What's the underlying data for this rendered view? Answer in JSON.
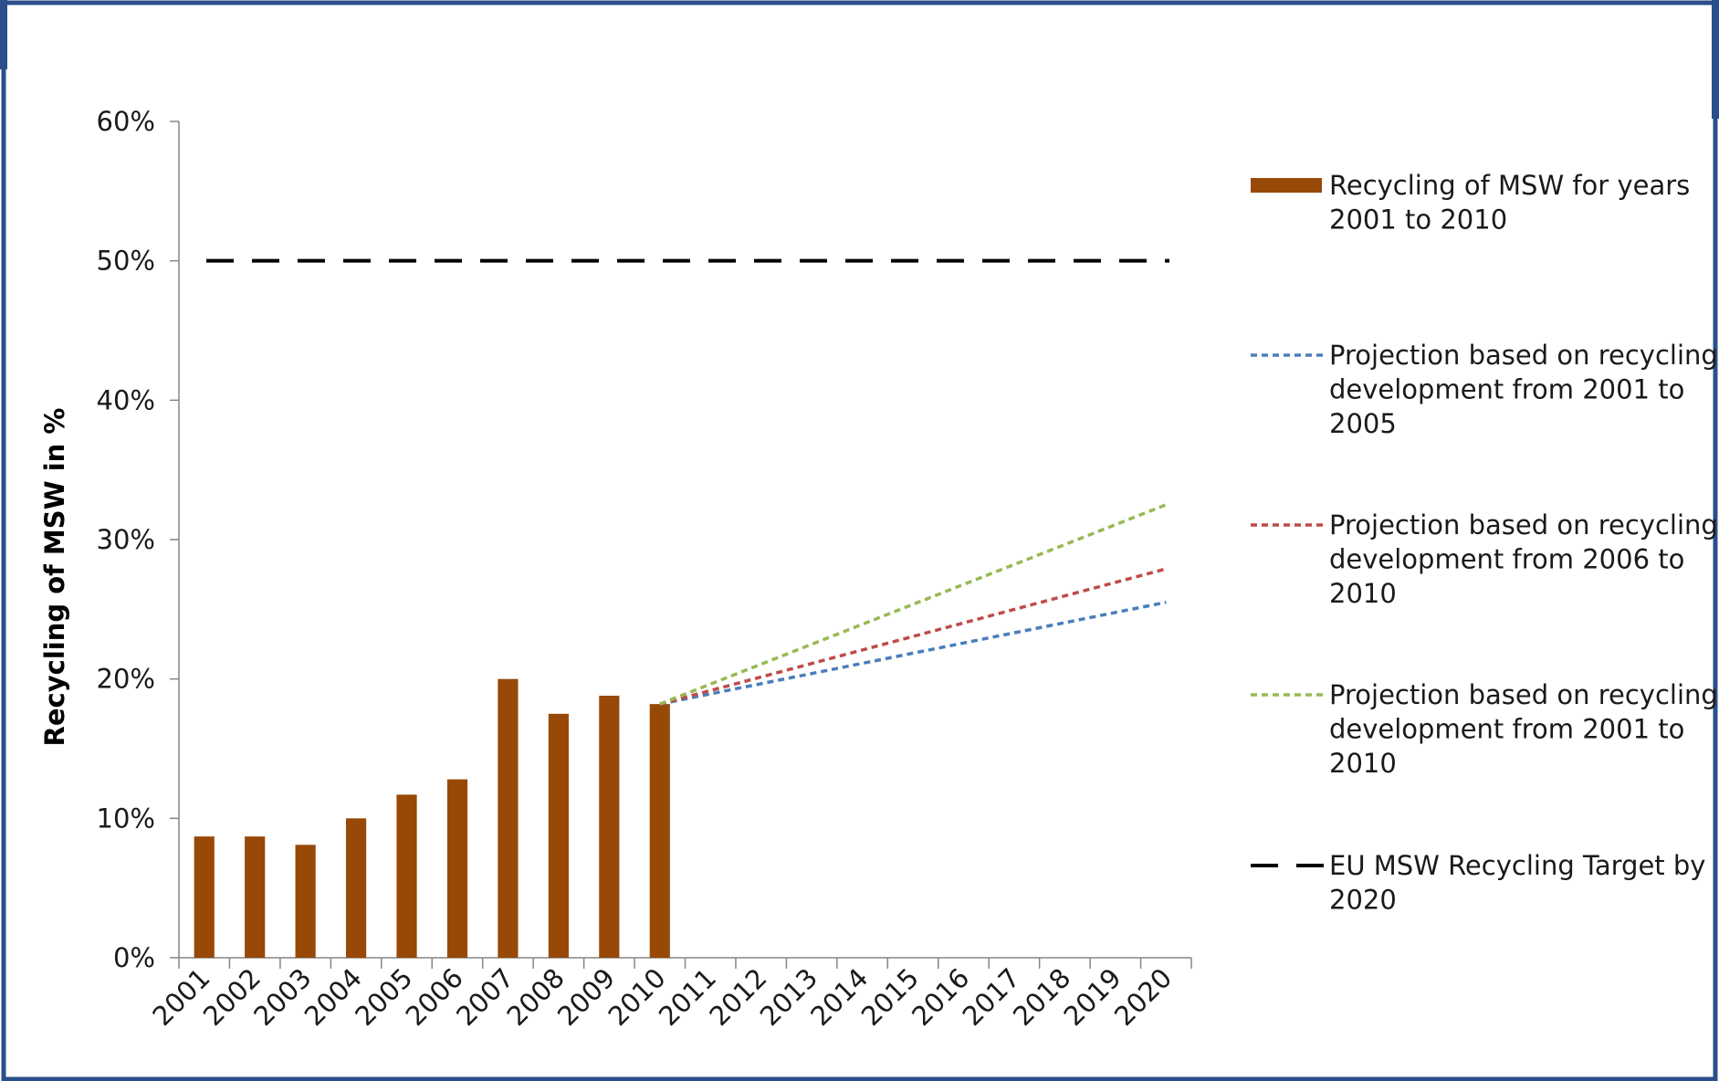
{
  "chart_data": {
    "type": "bar",
    "title": "",
    "xlabel": "",
    "ylabel": "Recycling of MSW in %",
    "ylim": [
      0,
      60
    ],
    "yticks": [
      "0%",
      "10%",
      "20%",
      "30%",
      "40%",
      "50%",
      "60%"
    ],
    "grid": false,
    "legend_position": "right",
    "categories": [
      "2001",
      "2002",
      "2003",
      "2004",
      "2005",
      "2006",
      "2007",
      "2008",
      "2009",
      "2010",
      "2011",
      "2012",
      "2013",
      "2014",
      "2015",
      "2016",
      "2017",
      "2018",
      "2019",
      "2020"
    ],
    "series": [
      {
        "name": "Recycling of MSW for years 2001 to 2010",
        "type": "bar",
        "color": "#984807",
        "values": [
          8.7,
          8.7,
          8.1,
          10.0,
          11.7,
          12.8,
          20.0,
          17.5,
          18.8,
          18.2,
          null,
          null,
          null,
          null,
          null,
          null,
          null,
          null,
          null,
          null
        ]
      },
      {
        "name": "Projection based on recycling development from 2001 to 2005",
        "type": "line",
        "style": "dotted",
        "color": "#4a7ebb",
        "x": [
          "2010",
          "2020"
        ],
        "values": [
          18.2,
          25.5
        ]
      },
      {
        "name": "Projection based on recycling development from 2006 to 2010",
        "type": "line",
        "style": "dotted",
        "color": "#be4b48",
        "x": [
          "2010",
          "2020"
        ],
        "values": [
          18.2,
          27.9
        ]
      },
      {
        "name": "Projection based on recycling development from 2001 to 2010",
        "type": "line",
        "style": "dotted",
        "color": "#98b954",
        "x": [
          "2010",
          "2020"
        ],
        "values": [
          18.2,
          32.5
        ]
      },
      {
        "name": "EU MSW Recycling Target by 2020",
        "type": "line",
        "style": "dashed",
        "color": "#000000",
        "x": [
          "2001",
          "2020"
        ],
        "values": [
          50,
          50
        ]
      }
    ],
    "legend": [
      {
        "lines": [
          "Recycling of MSW for years",
          "2001 to 2010"
        ],
        "marker": "bar",
        "color": "#984807"
      },
      {
        "lines": [
          "Projection based on recycling",
          "development from 2001 to",
          "2005"
        ],
        "marker": "dotted",
        "color": "#4a7ebb"
      },
      {
        "lines": [
          "Projection based on recycling",
          "development from 2006 to",
          "2010"
        ],
        "marker": "dotted",
        "color": "#be4b48"
      },
      {
        "lines": [
          "Projection based on recycling",
          "development from 2001 to",
          "2010"
        ],
        "marker": "dotted",
        "color": "#98b954"
      },
      {
        "lines": [
          "EU MSW Recycling Target by",
          "2020"
        ],
        "marker": "dashed",
        "color": "#000000"
      }
    ]
  },
  "frame": {
    "border_color": "#2a4f8c"
  }
}
